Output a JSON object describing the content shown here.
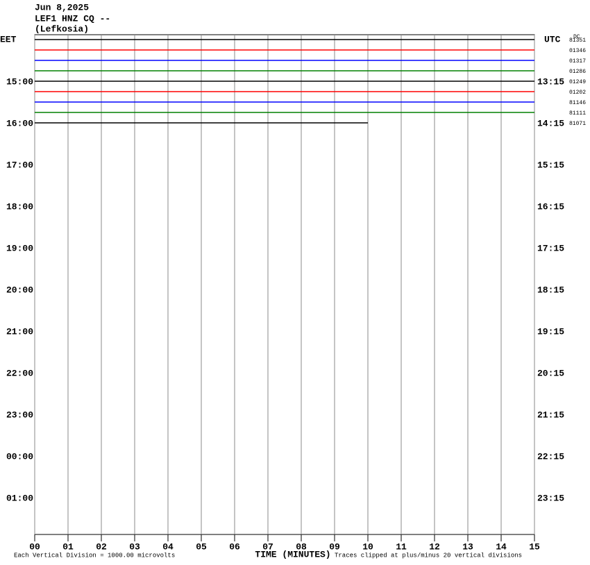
{
  "chart_data": {
    "type": "helicorder",
    "title_lines": [
      "Jun 8,2025",
      "LEF1 HNZ CQ --",
      "(Lefkosia)"
    ],
    "left_axis_label": "EET",
    "right_axis_label": "UTC",
    "right_header": "DC",
    "xlabel": "TIME (MINUTES)",
    "footer_left": "Each Vertical Division = 1000.00 microvolts",
    "footer_right": "Traces clipped at plus/minus 20 vertical divisions",
    "xlim": [
      0,
      15
    ],
    "xticks": [
      {
        "value": 0,
        "label": "00"
      },
      {
        "value": 1,
        "label": "01"
      },
      {
        "value": 2,
        "label": "02"
      },
      {
        "value": 3,
        "label": "03"
      },
      {
        "value": 4,
        "label": "04"
      },
      {
        "value": 5,
        "label": "05"
      },
      {
        "value": 6,
        "label": "06"
      },
      {
        "value": 7,
        "label": "07"
      },
      {
        "value": 8,
        "label": "08"
      },
      {
        "value": 9,
        "label": "09"
      },
      {
        "value": 10,
        "label": "10"
      },
      {
        "value": 11,
        "label": "11"
      },
      {
        "value": 12,
        "label": "12"
      },
      {
        "value": 13,
        "label": "13"
      },
      {
        "value": 14,
        "label": "14"
      },
      {
        "value": 15,
        "label": "15"
      }
    ],
    "ylim": [
      13.8833,
      25.8833
    ],
    "yticks": [
      {
        "value": 15,
        "label": "15:00"
      },
      {
        "value": 16,
        "label": "16:00"
      },
      {
        "value": 17,
        "label": "17:00"
      },
      {
        "value": 18,
        "label": "18:00"
      },
      {
        "value": 19,
        "label": "19:00"
      },
      {
        "value": 20,
        "label": "20:00"
      },
      {
        "value": 21,
        "label": "21:00"
      },
      {
        "value": 22,
        "label": "22:00"
      },
      {
        "value": 23,
        "label": "23:00"
      },
      {
        "value": 24,
        "label": "00:00"
      },
      {
        "value": 25,
        "label": "01:00"
      }
    ],
    "y2ticks": [
      {
        "value": 15,
        "label": "13:15"
      },
      {
        "value": 16,
        "label": "14:15"
      },
      {
        "value": 17,
        "label": "15:15"
      },
      {
        "value": 18,
        "label": "16:15"
      },
      {
        "value": 19,
        "label": "17:15"
      },
      {
        "value": 20,
        "label": "18:15"
      },
      {
        "value": 21,
        "label": "19:15"
      },
      {
        "value": 22,
        "label": "20:15"
      },
      {
        "value": 23,
        "label": "21:15"
      },
      {
        "value": 24,
        "label": "22:15"
      },
      {
        "value": 25,
        "label": "23:15"
      }
    ],
    "traces": [
      {
        "start": 14,
        "end": 15,
        "label": "81351",
        "color": "#000000"
      },
      {
        "start": 14.25,
        "end": 15,
        "label": "01346",
        "color": "#ff0000"
      },
      {
        "start": 14.5,
        "end": 15,
        "label": "01317",
        "color": "#0000ff"
      },
      {
        "start": 14.75,
        "end": 15,
        "label": "01286",
        "color": "#008000"
      },
      {
        "start": 15,
        "end": 15,
        "label": "01249",
        "color": "#000000"
      },
      {
        "start": 15.25,
        "end": 15,
        "label": "01202",
        "color": "#ff0000"
      },
      {
        "start": 15.5,
        "end": 15,
        "label": "81146",
        "color": "#0000ff"
      },
      {
        "start": 15.75,
        "end": 15,
        "label": "81111",
        "color": "#008000"
      },
      {
        "start": 16,
        "end": 10,
        "label": "81071",
        "color": "#000000"
      }
    ]
  }
}
